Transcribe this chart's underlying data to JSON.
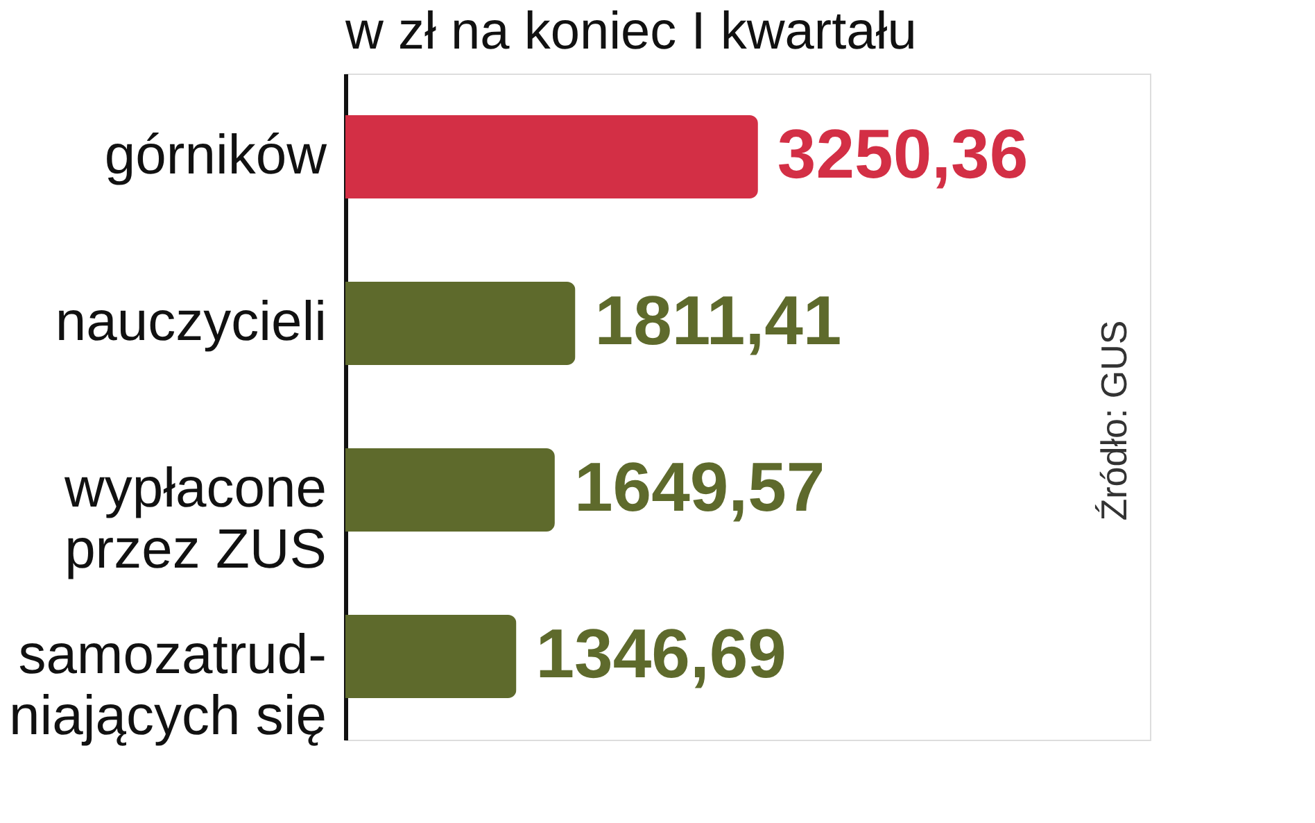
{
  "chart_data": {
    "type": "bar",
    "orientation": "horizontal",
    "subtitle": "w zł na koniec I kwartału",
    "categories": [
      "górników",
      "nauczycieli",
      "wypłacone\nprzez ZUS",
      "samozatrud-\nniających się"
    ],
    "values": [
      3250.36,
      1811.41,
      1649.57,
      1346.69
    ],
    "value_labels": [
      "3250,36",
      "1811,41",
      "1649,57",
      "1346,69"
    ],
    "colors": [
      "#d32f45",
      "#5e6a2c",
      "#5e6a2c",
      "#5e6a2c"
    ],
    "annotations": [
      "Źródło: GUS"
    ],
    "grid": false
  }
}
